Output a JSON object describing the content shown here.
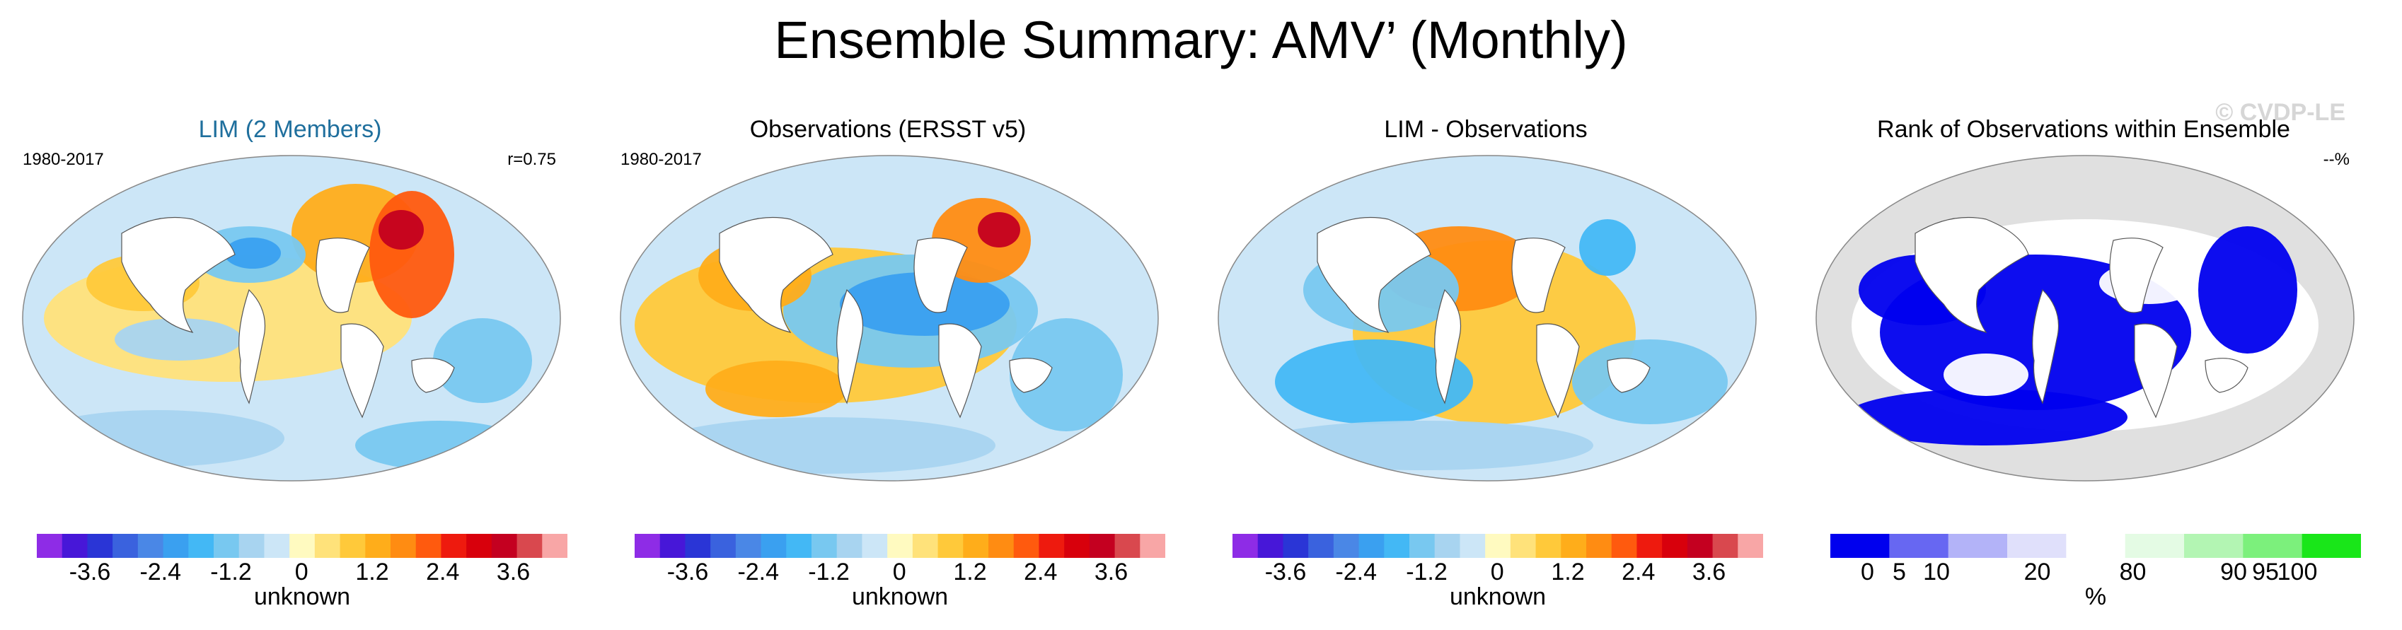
{
  "figure": {
    "title": "Ensemble Summary: AMV’ (Monthly)",
    "watermark": "© CVDP-LE"
  },
  "panels": [
    {
      "title": "LIM (2 Members)",
      "left_text": "1980-2017",
      "right_text": "r=0.75",
      "colorbar_label": "unknown",
      "ticks": [
        "-3.6",
        "-2.4",
        "-1.2",
        "0",
        "1.2",
        "2.4",
        "3.6"
      ]
    },
    {
      "title": "Observations (ERSST v5)",
      "left_text": "1980-2017",
      "right_text": "",
      "colorbar_label": "unknown",
      "ticks": [
        "-3.6",
        "-2.4",
        "-1.2",
        "0",
        "1.2",
        "2.4",
        "3.6"
      ]
    },
    {
      "title": "LIM - Observations",
      "left_text": "",
      "right_text": "",
      "colorbar_label": "unknown",
      "ticks": [
        "-3.6",
        "-2.4",
        "-1.2",
        "0",
        "1.2",
        "2.4",
        "3.6"
      ]
    },
    {
      "title": "Rank of Observations within Ensemble",
      "left_text": "",
      "right_text": "--%",
      "colorbar_label": "%",
      "ticks": [
        "0",
        "5",
        "10",
        "20",
        "80",
        "90",
        "95",
        "100"
      ]
    }
  ],
  "colors": {
    "anomaly_scale": [
      "#8e2ce6",
      "#4717d8",
      "#2a35d6",
      "#3a62de",
      "#4a87e6",
      "#3aa0f0",
      "#43b8f5",
      "#78c8f0",
      "#a8d4f0",
      "#cce6f7",
      "#fffac0",
      "#ffe27a",
      "#ffc93a",
      "#ffad1a",
      "#ff8c12",
      "#ff5a0e",
      "#ee1a0e",
      "#d8000c",
      "#c40020",
      "#d9484e",
      "#f8a6a6"
    ],
    "rank_scale": [
      "#0000ee",
      "#6767f2",
      "#b3b3f8",
      "#e0e0fb",
      "#ffffff",
      "#e4fbe4",
      "#b3f5b3",
      "#7cf07c",
      "#19e619"
    ],
    "land": "#ffffff",
    "ocean_missing": "#e0e0e0"
  }
}
